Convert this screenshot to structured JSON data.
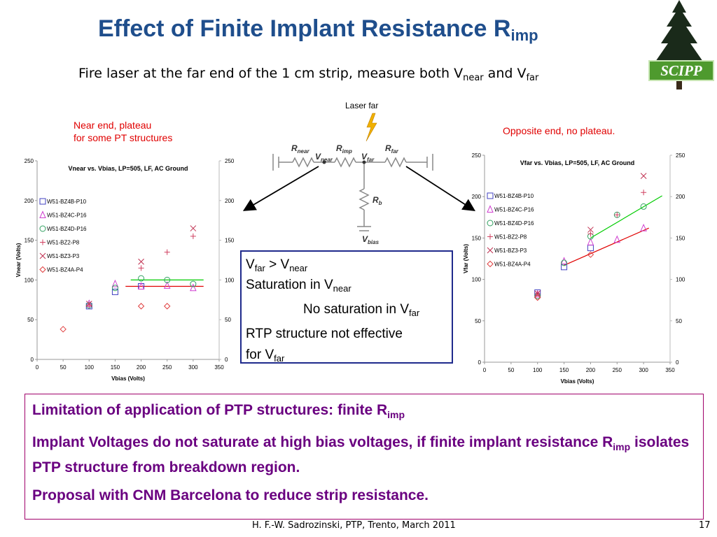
{
  "title": {
    "text": "Effect of Finite Implant Resistance R",
    "sub": "imp"
  },
  "subtitle": {
    "pre": "Fire laser at the far end of the 1 cm strip, measure both V",
    "sub1": "near",
    "mid": " and V",
    "sub2": "far"
  },
  "logo": {
    "text": "SCIPP"
  },
  "notes": {
    "near_line1": "Near end, plateau",
    "near_line2": "for some PT structures",
    "far": "Opposite end, no plateau."
  },
  "circuit": {
    "laser_label": "Laser far",
    "r_near": "R",
    "r_near_sub": "near",
    "r_imp": "R",
    "r_imp_sub": "imp",
    "r_far": "R",
    "r_far_sub": "far",
    "r_b": "R",
    "r_b_sub": "b",
    "v_near": "V",
    "v_near_sub": "near",
    "v_far": "V",
    "v_far_sub": "far",
    "v_bias": "V",
    "v_bias_sub": "bias"
  },
  "box": {
    "l1a": "V",
    "l1b": "far",
    "l1c": " > V",
    "l1d": "near",
    "l2a": "Saturation in V",
    "l2b": "near",
    "l3a": "No saturation in V",
    "l3b": "far",
    "l4": "RTP structure not effective",
    "l5a": "for V",
    "l5b": "far"
  },
  "bottom": {
    "p1a": "Limitation of application of PTP structures: finite R",
    "p1b": "imp",
    "p2a": "Implant Voltages do not saturate at high bias voltages, if finite implant resistance R",
    "p2b": "imp",
    "p2c": " isolates PTP structure from breakdown region.",
    "p3": "Proposal with CNM Barcelona to reduce strip resistance."
  },
  "footer": "H. F.-W.  Sadrozinski, PTP,  Trento, March 2011",
  "page_number": "17",
  "chart_data": [
    {
      "type": "scatter",
      "title": "Vnear vs. Vbias, LP=505, LF, AC Ground",
      "xlabel": "Vbias (Volts)",
      "ylabel": "Vnear (Volts)",
      "xlim": [
        0,
        350
      ],
      "ylim": [
        0,
        250
      ],
      "xticks": [
        "0",
        "50",
        "100",
        "150",
        "200",
        "250",
        "300",
        "350"
      ],
      "yticks": [
        "0",
        "50",
        "100",
        "150",
        "200",
        "250"
      ],
      "legend_position": "left",
      "series": [
        {
          "name": "W51-BZ4B-P10",
          "marker": "square",
          "color": "#4040c0",
          "x": [
            100,
            150,
            200
          ],
          "y": [
            67,
            85,
            92
          ]
        },
        {
          "name": "W51-BZ4C-P16",
          "marker": "triangle",
          "color": "#d040d0",
          "x": [
            100,
            150,
            200,
            250,
            300
          ],
          "y": [
            70,
            95,
            92,
            93,
            90
          ]
        },
        {
          "name": "W51-BZ4D-P16",
          "marker": "circle",
          "color": "#30a060",
          "x": [
            100,
            150,
            200,
            250,
            300
          ],
          "y": [
            68,
            90,
            102,
            100,
            95
          ]
        },
        {
          "name": "W51-BZ2-P8",
          "marker": "plus",
          "color": "#d04060",
          "x": [
            100,
            200,
            250,
            300
          ],
          "y": [
            68,
            115,
            135,
            155
          ]
        },
        {
          "name": "W51-BZ3-P3",
          "marker": "cross",
          "color": "#c03050",
          "x": [
            100,
            200,
            300
          ],
          "y": [
            70,
            123,
            165
          ]
        },
        {
          "name": "W51-BZ4A-P4",
          "marker": "diamond",
          "color": "#e04040",
          "x": [
            50,
            200,
            250
          ],
          "y": [
            38,
            67,
            67
          ]
        }
      ],
      "lines": [
        {
          "color": "#00cc00",
          "x": [
            180,
            320
          ],
          "y": [
            100,
            100
          ]
        },
        {
          "color": "#e00000",
          "x": [
            170,
            320
          ],
          "y": [
            92,
            92
          ]
        }
      ]
    },
    {
      "type": "scatter",
      "title": "Vfar vs. Vbias, LP=505, LF, AC Ground",
      "xlabel": "Vbias (Volts)",
      "ylabel": "Vfar (Volts)",
      "xlim": [
        0,
        350
      ],
      "ylim": [
        0,
        250
      ],
      "xticks": [
        "0",
        "50",
        "100",
        "150",
        "200",
        "250",
        "300",
        "350"
      ],
      "yticks": [
        "0",
        "50",
        "100",
        "150",
        "200",
        "250"
      ],
      "legend_position": "left",
      "series": [
        {
          "name": "W51-BZ4B-P10",
          "marker": "square",
          "color": "#4040c0",
          "x": [
            100,
            150,
            200
          ],
          "y": [
            84,
            115,
            138
          ]
        },
        {
          "name": "W51-BZ4C-P16",
          "marker": "triangle",
          "color": "#d040d0",
          "x": [
            100,
            150,
            200,
            250,
            300
          ],
          "y": [
            82,
            122,
            145,
            148,
            162
          ]
        },
        {
          "name": "W51-BZ4D-P16",
          "marker": "circle",
          "color": "#30a060",
          "x": [
            100,
            150,
            200,
            250,
            300
          ],
          "y": [
            80,
            120,
            152,
            178,
            188
          ]
        },
        {
          "name": "W51-BZ2-P8",
          "marker": "plus",
          "color": "#d04060",
          "x": [
            100,
            200,
            250,
            300
          ],
          "y": [
            83,
            155,
            178,
            205
          ]
        },
        {
          "name": "W51-BZ3-P3",
          "marker": "cross",
          "color": "#c03050",
          "x": [
            100,
            200,
            300
          ],
          "y": [
            83,
            160,
            225
          ]
        },
        {
          "name": "W51-BZ4A-P4",
          "marker": "diamond",
          "color": "#e04040",
          "x": [
            100,
            200
          ],
          "y": [
            78,
            130
          ]
        }
      ],
      "lines": [
        {
          "color": "#00cc00",
          "x": [
            200,
            335
          ],
          "y": [
            150,
            201
          ]
        },
        {
          "color": "#e00000",
          "x": [
            150,
            310
          ],
          "y": [
            117,
            162
          ]
        }
      ]
    }
  ]
}
